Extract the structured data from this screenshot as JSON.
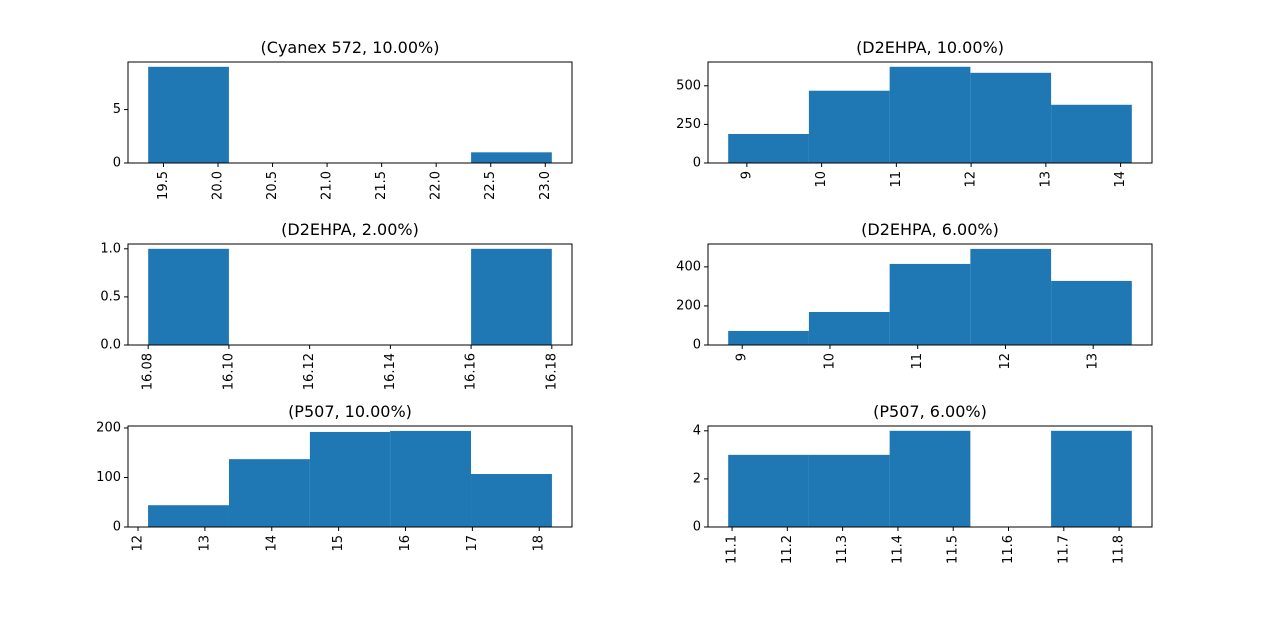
{
  "chart_data": [
    {
      "type": "histogram",
      "title": "(Cyanex 572, 10.00%)",
      "color": "#1f77b4",
      "bins": [
        19.36,
        20.1,
        20.84,
        21.58,
        22.32,
        23.06
      ],
      "counts": [
        9,
        0,
        0,
        0,
        1
      ],
      "xlim": [
        19.175,
        23.245
      ],
      "ylim": [
        0,
        9.45
      ],
      "xticks": [
        19.5,
        {
          "value": 20,
          "label": "20.0"
        },
        20.5,
        {
          "value": 21,
          "label": "21.0"
        },
        21.5,
        {
          "value": 22,
          "label": "22.0"
        },
        22.5,
        {
          "value": 23,
          "label": "23.0"
        }
      ],
      "yticks": [
        0,
        5
      ]
    },
    {
      "type": "histogram",
      "title": "(D2EHPA, 10.00%)",
      "color": "#1f77b4",
      "bins": [
        8.75,
        9.83,
        10.91,
        11.99,
        13.07,
        14.15
      ],
      "counts": [
        188,
        468,
        623,
        584,
        377
      ],
      "xlim": [
        8.48,
        14.42
      ],
      "ylim": [
        0,
        654
      ],
      "xticks": [
        9,
        10,
        11,
        12,
        13,
        14
      ],
      "yticks": [
        0,
        250,
        500
      ]
    },
    {
      "type": "histogram",
      "title": "(D2EHPA, 2.00%)",
      "color": "#1f77b4",
      "bins": [
        16.08,
        16.1,
        16.12,
        16.14,
        16.16,
        16.18
      ],
      "counts": [
        1,
        0,
        0,
        0,
        1
      ],
      "xlim": [
        16.075,
        16.185
      ],
      "ylim": [
        0,
        1.05
      ],
      "xticks": [
        16.08,
        {
          "value": 16.1,
          "label": "16.10"
        },
        16.12,
        16.14,
        16.16,
        16.18
      ],
      "yticks": [
        {
          "value": 0,
          "label": "0.0"
        },
        0.5,
        {
          "value": 1,
          "label": "1.0"
        }
      ]
    },
    {
      "type": "histogram",
      "title": "(D2EHPA, 6.00%)",
      "color": "#1f77b4",
      "bins": [
        8.84,
        9.76,
        10.68,
        11.6,
        12.52,
        13.44
      ],
      "counts": [
        72,
        169,
        415,
        492,
        328
      ],
      "xlim": [
        8.61,
        13.67
      ],
      "ylim": [
        0,
        517
      ],
      "xticks": [
        9,
        10,
        11,
        12,
        13
      ],
      "yticks": [
        0,
        200,
        400
      ]
    },
    {
      "type": "histogram",
      "title": "(P507, 10.00%)",
      "color": "#1f77b4",
      "bins": [
        12.15,
        13.36,
        14.57,
        15.77,
        16.98,
        18.19
      ],
      "counts": [
        44,
        137,
        192,
        194,
        107
      ],
      "xlim": [
        11.85,
        18.49
      ],
      "ylim": [
        0,
        204
      ],
      "xticks": [
        12,
        13,
        14,
        15,
        16,
        17,
        18
      ],
      "yticks": [
        0,
        100,
        200
      ]
    },
    {
      "type": "histogram",
      "title": "(P507, 6.00%)",
      "color": "#1f77b4",
      "bins": [
        11.093,
        11.239,
        11.385,
        11.531,
        11.677,
        11.823
      ],
      "counts": [
        3,
        3,
        4,
        0,
        4
      ],
      "xlim": [
        11.0565,
        11.8595
      ],
      "ylim": [
        0,
        4.2
      ],
      "xticks": [
        11.1,
        11.2,
        11.3,
        11.4,
        11.5,
        11.6,
        11.7,
        11.8
      ],
      "yticks": [
        0,
        2,
        4
      ]
    }
  ]
}
